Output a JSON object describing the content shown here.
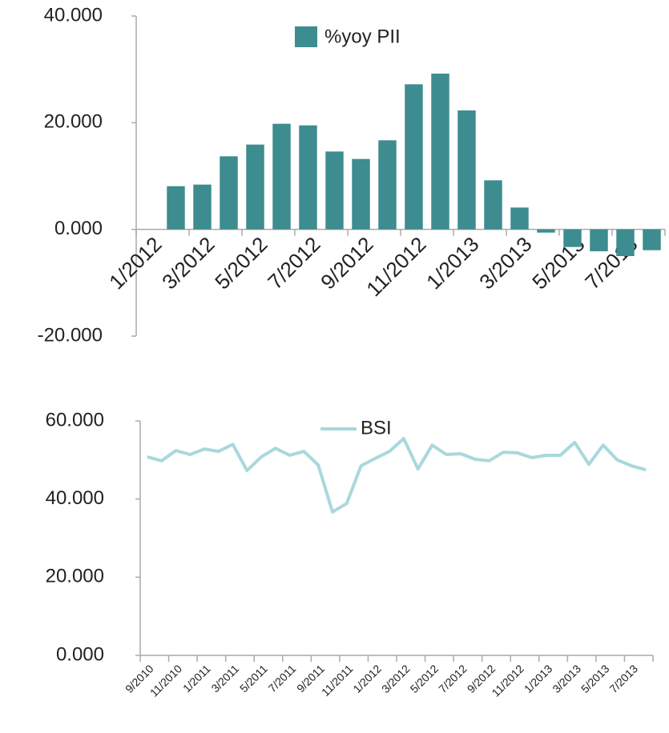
{
  "chart_data": [
    {
      "type": "bar",
      "categories": [
        "1/2012",
        null,
        "3/2012",
        null,
        "5/2012",
        null,
        "7/2012",
        null,
        "9/2012",
        null,
        "11/2012",
        null,
        "1/2013",
        null,
        "3/2013",
        null,
        "5/2013",
        null,
        "7/2013",
        null
      ],
      "series": [
        {
          "name": "%yoy PII",
          "color": "#3d8c8f",
          "values": [
            null,
            8.1,
            8.4,
            13.7,
            15.9,
            19.8,
            19.5,
            14.6,
            13.2,
            16.7,
            27.2,
            29.2,
            22.3,
            9.2,
            4.1,
            -0.6,
            -3.3,
            -4.1,
            -5.0,
            -3.9
          ]
        }
      ],
      "ylim": [
        -20,
        40
      ],
      "yticks": [
        {
          "value": -20,
          "label": "-20.000"
        },
        {
          "value": 0,
          "label": "0.000"
        },
        {
          "value": 20,
          "label": "20.000"
        },
        {
          "value": 40,
          "label": "40.000"
        }
      ],
      "legend": "top"
    },
    {
      "type": "line",
      "categories": [
        "9/2010",
        null,
        "11/2010",
        null,
        "1/2011",
        null,
        "3/2011",
        null,
        "5/2011",
        null,
        "7/2011",
        null,
        "9/2011",
        null,
        "11/2011",
        null,
        "1/2012",
        null,
        "3/2012",
        null,
        "5/2012",
        null,
        "7/2012",
        null,
        "9/2012",
        null,
        "11/2012",
        null,
        "1/2013",
        null,
        "3/2013",
        null,
        "5/2013",
        null,
        "7/2013",
        null
      ],
      "series": [
        {
          "name": "BSI",
          "color": "#a9d8dc",
          "values": [
            50.8,
            49.8,
            52.4,
            51.4,
            52.8,
            52.2,
            54.0,
            47.3,
            50.8,
            53.0,
            51.2,
            52.2,
            48.7,
            36.7,
            38.9,
            48.5,
            50.4,
            52.2,
            55.5,
            47.7,
            53.8,
            51.4,
            51.6,
            50.2,
            49.8,
            52.0,
            51.8,
            50.6,
            51.2,
            51.2,
            54.5,
            48.9,
            53.8,
            50.0,
            48.5,
            47.5
          ]
        }
      ],
      "ylim": [
        0,
        60
      ],
      "yticks": [
        {
          "value": 0,
          "label": "0.000"
        },
        {
          "value": 20,
          "label": "20.000"
        },
        {
          "value": 40,
          "label": "40.000"
        },
        {
          "value": 60,
          "label": "60.000"
        }
      ],
      "legend": "top"
    }
  ]
}
